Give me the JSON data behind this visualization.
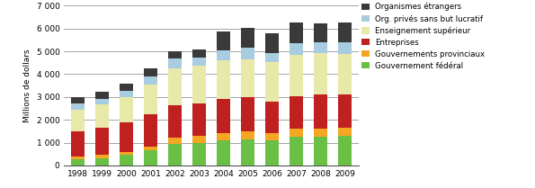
{
  "years": [
    "1998",
    "1999",
    "2000",
    "2001",
    "2002",
    "2003",
    "2004",
    "2005",
    "2006",
    "2007",
    "2008",
    "2009"
  ],
  "series": {
    "Gouvernement fédéral": [
      270,
      320,
      450,
      650,
      950,
      1000,
      1100,
      1150,
      1100,
      1250,
      1250,
      1280
    ],
    "Gouvernements provinciaux": [
      120,
      130,
      150,
      180,
      250,
      280,
      320,
      340,
      330,
      350,
      360,
      370
    ],
    "Entreprises": [
      1100,
      1220,
      1300,
      1400,
      1450,
      1450,
      1480,
      1500,
      1350,
      1450,
      1500,
      1450
    ],
    "Enseignement supérieur": [
      950,
      1000,
      1100,
      1300,
      1600,
      1650,
      1700,
      1650,
      1750,
      1800,
      1800,
      1800
    ],
    "Org. privés sans but lucratif": [
      280,
      260,
      270,
      360,
      420,
      360,
      430,
      500,
      380,
      520,
      480,
      500
    ],
    "Organismes étrangers": [
      280,
      300,
      300,
      380,
      350,
      340,
      850,
      900,
      880,
      900,
      850,
      870
    ]
  },
  "colors": {
    "Gouvernement fédéral": "#6abf45",
    "Gouvernements provinciaux": "#f5a623",
    "Entreprises": "#bf2020",
    "Enseignement supérieur": "#e8e8a8",
    "Org. privés sans but lucratif": "#a8cce0",
    "Organismes étrangers": "#3a3a3a"
  },
  "ylabel": "Millions de dollars",
  "ylim": [
    0,
    7000
  ],
  "yticks": [
    0,
    1000,
    2000,
    3000,
    4000,
    5000,
    6000,
    7000
  ],
  "ytick_labels": [
    "0",
    "1 000",
    "2 000",
    "3 000",
    "4 000",
    "5 000",
    "6 000",
    "7 000"
  ]
}
